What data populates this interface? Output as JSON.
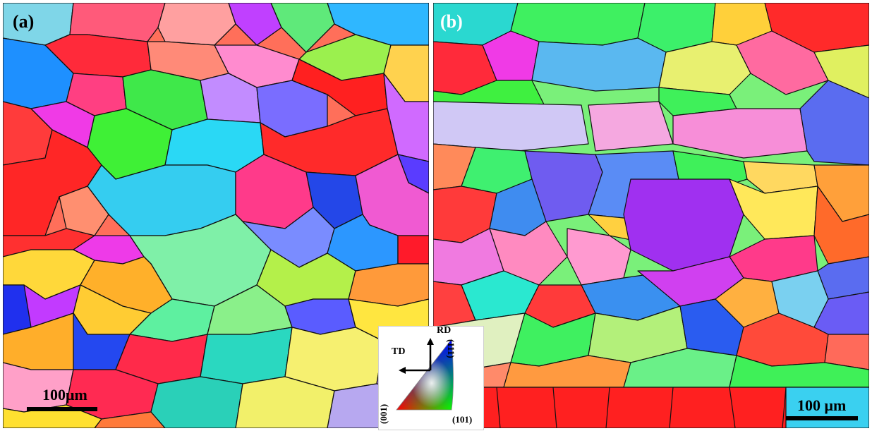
{
  "panels": [
    {
      "label": "(a)",
      "scale_bar": "100μm"
    },
    {
      "label": "(b)",
      "scale_bar": "100 μm"
    }
  ],
  "legend": {
    "direction_labels": {
      "up": "RD",
      "left": "TD"
    },
    "corners": {
      "bottom_left": "(001)",
      "bottom_right": "(101)",
      "top": "(111)"
    }
  },
  "colors": {
    "red": "#ff1a1a",
    "green": "#22e83a",
    "blue": "#1f3fe8",
    "cyan": "#3ad8f0",
    "magenta": "#f032e6",
    "grain_boundary": "#111111"
  }
}
